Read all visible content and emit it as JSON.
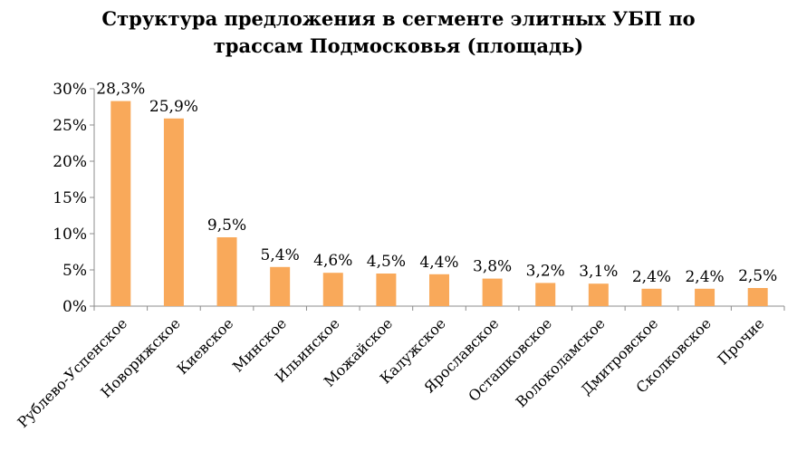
{
  "chart_data": {
    "type": "bar",
    "title_lines": [
      "Структура предложения в сегменте элитных УБП по",
      "трассам Подмосковья (площадь)"
    ],
    "categories": [
      "Рублево-Успенское",
      "Новорижское",
      "Киевское",
      "Минское",
      "Ильинское",
      "Можайское",
      "Калужское",
      "Ярославское",
      "Осташковское",
      "Волоколамское",
      "Дмитровское",
      "Сколковское",
      "Прочие"
    ],
    "values": [
      28.3,
      25.9,
      9.5,
      5.4,
      4.6,
      4.5,
      4.4,
      3.8,
      3.2,
      3.1,
      2.4,
      2.4,
      2.5
    ],
    "value_labels": [
      "28,3%",
      "25,9%",
      "9,5%",
      "5,4%",
      "4,6%",
      "4,5%",
      "4,4%",
      "3,8%",
      "3,2%",
      "3,1%",
      "2,4%",
      "2,4%",
      "2,5%"
    ],
    "y_ticks": [
      0,
      5,
      10,
      15,
      20,
      25,
      30
    ],
    "y_tick_labels": [
      "0%",
      "5%",
      "10%",
      "15%",
      "20%",
      "25%",
      "30%"
    ],
    "ylim": [
      0,
      30
    ],
    "grid": false,
    "legend": "none",
    "bar_color": "#F9A95A"
  }
}
